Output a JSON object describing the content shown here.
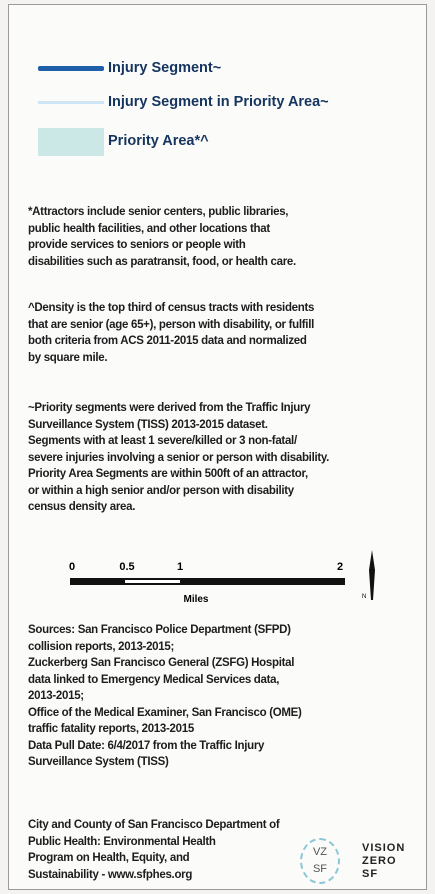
{
  "legend": [
    {
      "label": "Injury Segment~"
    },
    {
      "label": "Injury Segment in Priority Area~"
    },
    {
      "label": "Priority Area*^"
    }
  ],
  "notes": [
    [
      "*Attractors include senior centers, public libraries,",
      "public health facilities, and other locations that",
      "provide services to seniors or people with",
      "disabilities such as paratransit, food, or health care."
    ],
    [
      "^Density is the top third of census tracts with residents",
      "that are senior (age 65+), person with disability, or fulfill",
      "both criteria from ACS 2011-2015 data and normalized",
      "by square mile."
    ],
    [
      "~Priority segments were derived from the Traffic Injury",
      "Surveillance System (TISS) 2013-2015 dataset.",
      "Segments with at least 1 severe/killed or 3 non-fatal/",
      "severe injuries involving a senior or person with disability.",
      "Priority Area Segments are within 500ft of an attractor,",
      "or within a high senior and/or person with disability",
      "census density area."
    ]
  ],
  "scale": {
    "labels": [
      "0",
      "0.5",
      "1",
      "2"
    ],
    "unit": "Miles",
    "north": "N"
  },
  "sources": [
    "Sources: San Francisco Police Department (SFPD)",
    "collision reports, 2013-2015;",
    "Zuckerberg San Francisco General (ZSFG) Hospital",
    "data linked to Emergency Medical Services data,",
    "2013-2015;",
    "Office of the Medical Examiner, San Francisco (OME)",
    "traffic fatality reports, 2013-2015",
    "Data Pull Date: 6/4/2017 from the Traffic Injury",
    "Surveillance System (TISS)"
  ],
  "footer": [
    "City and County of San Francisco Department of",
    "Public Health: Environmental Health",
    "Program on Health, Equity, and",
    "Sustainability - www.sfphes.org"
  ],
  "logo": {
    "badge": [
      "VZ",
      "SF"
    ],
    "words": [
      "VISION",
      "ZERO",
      "SF"
    ]
  }
}
